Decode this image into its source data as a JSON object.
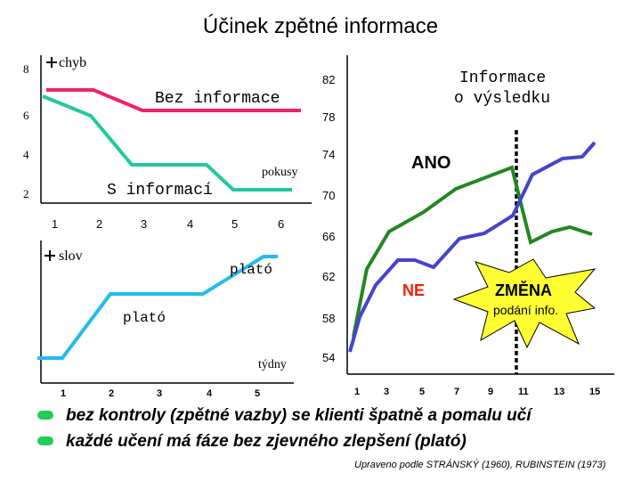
{
  "title": "Účinek zpětné informace",
  "left_top": {
    "unit_label": "chyb",
    "y_ticks": [
      "8",
      "6",
      "4",
      "2"
    ],
    "x_ticks": [
      "1",
      "2",
      "3",
      "4",
      "5",
      "6"
    ],
    "x_unit": "pokusy",
    "series_labels": {
      "no_info": "Bez informace",
      "with_info": "S informací"
    },
    "colors": {
      "no_info": "#ee2266",
      "with_info": "#22c8a0"
    }
  },
  "left_bottom": {
    "unit_label": "slov",
    "plateau_labels": [
      "plató",
      "plató"
    ],
    "x_ticks": [
      "1",
      "2",
      "3",
      "4",
      "5"
    ],
    "x_unit": "týdny",
    "color": "#22bbee"
  },
  "right": {
    "y_ticks": [
      "82",
      "78",
      "74",
      "70",
      "66",
      "62",
      "58",
      "54"
    ],
    "x_ticks": [
      "1",
      "3",
      "5",
      "7",
      "9",
      "11",
      "13",
      "15"
    ],
    "legend_title_line1": "Informace",
    "legend_title_line2": "o výsledku",
    "label_yes": "ANO",
    "label_no": "NE",
    "burst_title": "ZMĚNA",
    "burst_subtitle": "podání info.",
    "colors": {
      "yes": "#228822",
      "no": "#4444cc",
      "burst": "#ffff33"
    }
  },
  "bullets": [
    "bez kontroly (zpětné vazby) se klienti špatně a pomalu učí",
    "každé učení má fáze bez zjevného zlepšení (plató)"
  ],
  "credit": "Upraveno podle STRÁNSKÝ (1960), RUBINSTEIN (1973)"
}
